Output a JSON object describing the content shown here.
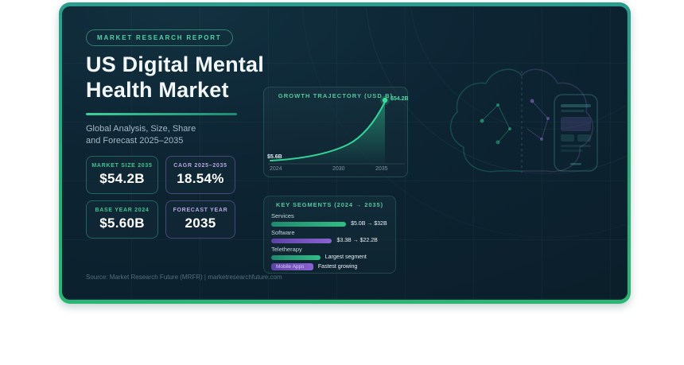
{
  "colors": {
    "accent_green": "#2fbf83",
    "accent_teal": "#2a9d8f",
    "accent_purple": "#8a63d2",
    "card_bg": "#0d2433",
    "text_primary": "#f2f7f9",
    "text_muted": "#a3bac6",
    "panel_title": "#54c79d",
    "source_text": "#50707e"
  },
  "header": {
    "badge": "MARKET RESEARCH REPORT",
    "title_line1": "US Digital Mental",
    "title_line2": "Health Market",
    "subtitle_line1": "Global Analysis, Size, Share",
    "subtitle_line2": "and Forecast 2025–2035"
  },
  "stats": [
    {
      "label": "MARKET SIZE 2035",
      "value": "$54.2B",
      "accent": "green"
    },
    {
      "label": "CAGR 2025–2035",
      "value": "18.54%",
      "accent": "purple"
    },
    {
      "label": "BASE YEAR 2024",
      "value": "$5.60B",
      "accent": "green"
    },
    {
      "label": "FORECAST YEAR",
      "value": "2035",
      "accent": "purple"
    }
  ],
  "chart_data": [
    {
      "type": "area",
      "title": "GROWTH TRAJECTORY (USD B)",
      "x_ticks": [
        "2024",
        "2030",
        "2035"
      ],
      "points": [
        {
          "x": 2024,
          "y": 5.6
        },
        {
          "x": 2035,
          "y": 54.2
        }
      ],
      "start_label": "$5.6B",
      "end_label": "$54.2B",
      "trend": "exponential",
      "legend": "none",
      "grid": "off"
    },
    {
      "type": "bar",
      "title": "KEY SEGMENTS (2024 → 2035)",
      "categories": [
        "Services",
        "Software",
        "Teletherapy",
        "Mobile Apps"
      ],
      "values": [
        64,
        52,
        42,
        36
      ],
      "value_labels": [
        "$5.0B → $32B",
        "$3.3B → $22.2B",
        "Largest segment",
        "Fastest growing"
      ],
      "bar_colors": [
        "green",
        "purple",
        "green",
        "purple"
      ],
      "orientation": "horizontal"
    }
  ],
  "footer": {
    "source": "Source: Market Research Future (MRFR) | marketresearchfuture.com"
  }
}
